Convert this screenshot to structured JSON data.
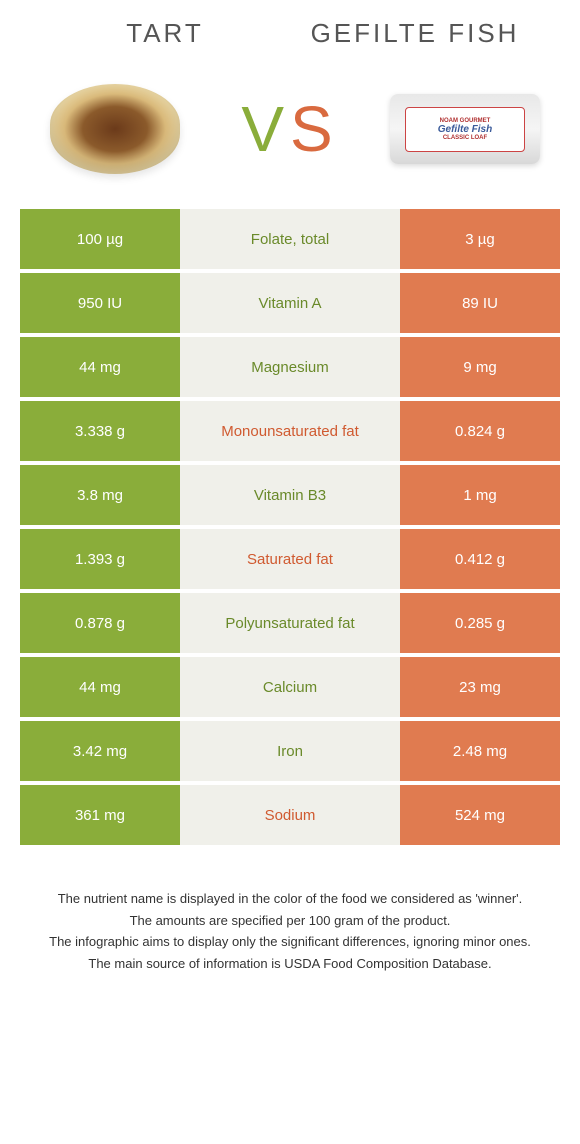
{
  "foods": {
    "left": {
      "name": "tart"
    },
    "right": {
      "name": "gefilte fish"
    }
  },
  "vs": {
    "v": "V",
    "s": "S"
  },
  "colors": {
    "green_bg": "#8aad3a",
    "orange_bg": "#e07b50",
    "mid_bg": "#f0f0ea",
    "green_text": "#6a8a2a",
    "orange_text": "#d05a30"
  },
  "rows": [
    {
      "left": "100 µg",
      "nutrient": "Folate, total",
      "right": "3 µg",
      "winner": "green"
    },
    {
      "left": "950 IU",
      "nutrient": "Vitamin A",
      "right": "89 IU",
      "winner": "green"
    },
    {
      "left": "44 mg",
      "nutrient": "Magnesium",
      "right": "9 mg",
      "winner": "green"
    },
    {
      "left": "3.338 g",
      "nutrient": "Monounsaturated fat",
      "right": "0.824 g",
      "winner": "orange"
    },
    {
      "left": "3.8 mg",
      "nutrient": "Vitamin B3",
      "right": "1 mg",
      "winner": "green"
    },
    {
      "left": "1.393 g",
      "nutrient": "Saturated fat",
      "right": "0.412 g",
      "winner": "orange"
    },
    {
      "left": "0.878 g",
      "nutrient": "Polyunsaturated fat",
      "right": "0.285 g",
      "winner": "green"
    },
    {
      "left": "44 mg",
      "nutrient": "Calcium",
      "right": "23 mg",
      "winner": "green"
    },
    {
      "left": "3.42 mg",
      "nutrient": "Iron",
      "right": "2.48 mg",
      "winner": "green"
    },
    {
      "left": "361 mg",
      "nutrient": "Sodium",
      "right": "524 mg",
      "winner": "orange"
    }
  ],
  "footnotes": [
    "The nutrient name is displayed in the color of the food we considered as 'winner'.",
    "The amounts are specified per 100 gram of the product.",
    "The infographic aims to display only the significant differences, ignoring minor ones.",
    "The main source of information is USDA Food Composition Database."
  ],
  "package_label": {
    "brand": "NOAM GOURMET",
    "product": "Gefilte Fish",
    "variant": "CLASSIC LOAF"
  }
}
